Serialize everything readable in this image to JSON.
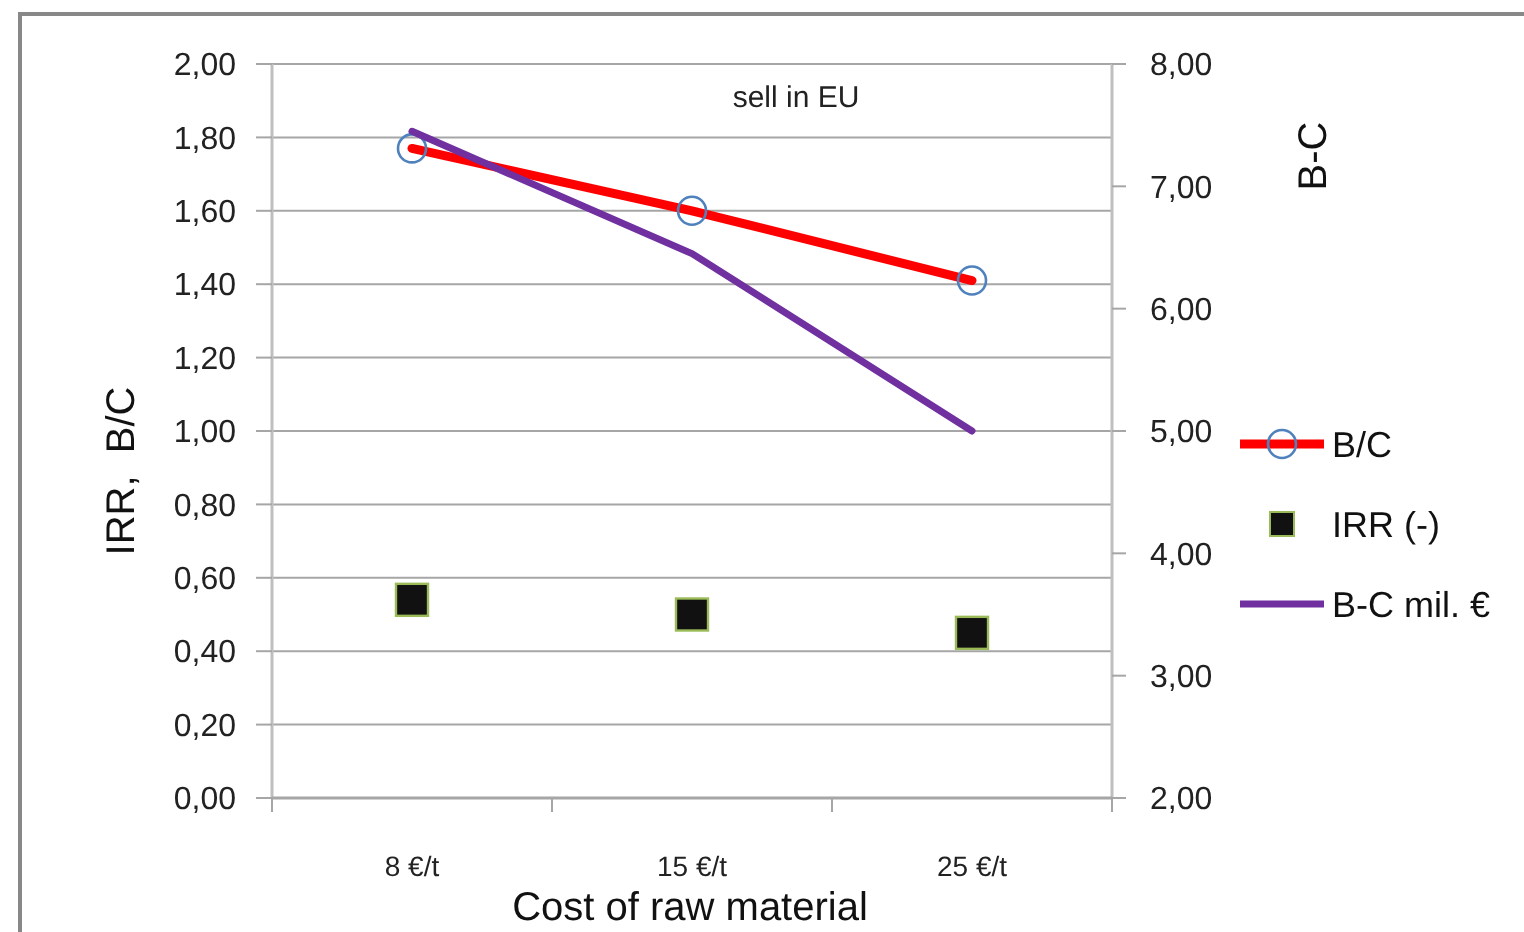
{
  "chart_data": {
    "type": "line",
    "categories": [
      "8 €/t",
      "15 €/t",
      "25 €/t"
    ],
    "xlabel": "Cost of raw material",
    "ylabel": "IRR,  B/C",
    "y2label": "B-C",
    "annotations": [
      "sell in EU"
    ],
    "ylim": [
      0,
      2
    ],
    "yticks": [
      {
        "value": 0,
        "label": "0,00"
      },
      {
        "value": 0.2,
        "label": "0,20"
      },
      {
        "value": 0.4,
        "label": "0,40"
      },
      {
        "value": 0.6,
        "label": "0,60"
      },
      {
        "value": 0.8,
        "label": "0,80"
      },
      {
        "value": 1,
        "label": "1,00"
      },
      {
        "value": 1.2,
        "label": "1,20"
      },
      {
        "value": 1.4,
        "label": "1,40"
      },
      {
        "value": 1.6,
        "label": "1,60"
      },
      {
        "value": 1.8,
        "label": "1,80"
      },
      {
        "value": 2,
        "label": "2,00"
      }
    ],
    "y2lim": [
      2,
      8
    ],
    "y2ticks": [
      {
        "value": 2,
        "label": "2,00"
      },
      {
        "value": 3,
        "label": "3,00"
      },
      {
        "value": 4,
        "label": "4,00"
      },
      {
        "value": 5,
        "label": "5,00"
      },
      {
        "value": 6,
        "label": "6,00"
      },
      {
        "value": 7,
        "label": "7,00"
      },
      {
        "value": 8,
        "label": "8,00"
      }
    ],
    "grid": "y",
    "legend": "right",
    "series": [
      {
        "name": "B/C",
        "type": "line",
        "color": "#ff0000",
        "marker": "circle",
        "colors": [
          "#4f81bd",
          "#4f81bd",
          "#4f81bd"
        ],
        "values": [
          1.77,
          1.6,
          1.41
        ]
      },
      {
        "name": "IRR (-)",
        "type": "scatter",
        "color": "#111111",
        "marker": "square",
        "values": [
          0.54,
          0.5,
          0.45
        ]
      },
      {
        "name": "B-C mil. €",
        "type": "line",
        "color": "#7030a0",
        "marker": "none",
        "axis": "y2",
        "values": [
          7.45,
          6.45,
          5.0
        ]
      }
    ]
  }
}
